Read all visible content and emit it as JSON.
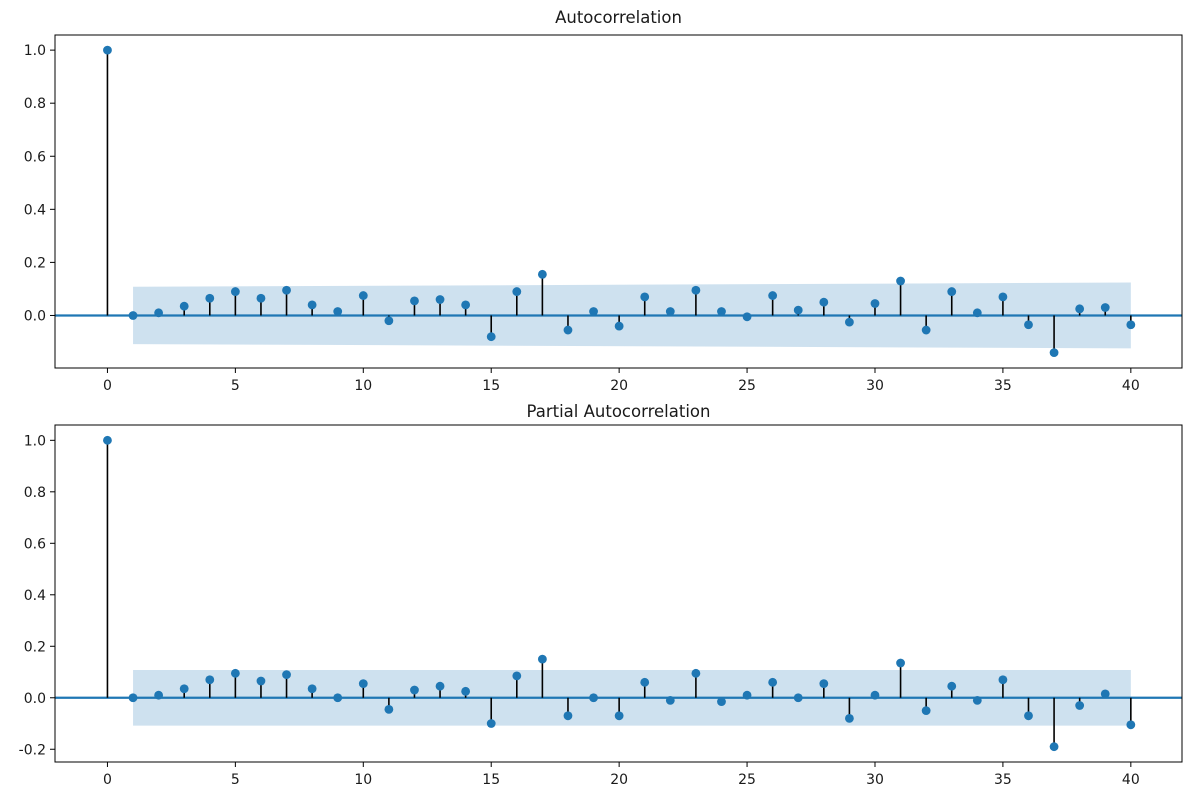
{
  "figure": {
    "background": "#ffffff",
    "kind": "acf-pacf-figure"
  },
  "chart_data": [
    {
      "type": "stem",
      "title": "Autocorrelation",
      "x": [
        0,
        1,
        2,
        3,
        4,
        5,
        6,
        7,
        8,
        9,
        10,
        11,
        12,
        13,
        14,
        15,
        16,
        17,
        18,
        19,
        20,
        21,
        22,
        23,
        24,
        25,
        26,
        27,
        28,
        29,
        30,
        31,
        32,
        33,
        34,
        35,
        36,
        37,
        38,
        39,
        40
      ],
      "values": [
        1.0,
        0.0,
        0.01,
        0.035,
        0.065,
        0.09,
        0.065,
        0.095,
        0.04,
        0.015,
        0.075,
        -0.02,
        0.055,
        0.06,
        0.04,
        -0.08,
        0.09,
        0.155,
        -0.055,
        0.015,
        -0.04,
        0.07,
        0.015,
        0.095,
        0.015,
        -0.005,
        0.075,
        0.02,
        0.05,
        -0.025,
        0.045,
        0.13,
        -0.055,
        0.09,
        0.01,
        0.07,
        -0.035,
        -0.14,
        0.025,
        0.03,
        -0.035
      ],
      "conf_band": {
        "x_start": 1,
        "x_end": 40,
        "upper_start": 0.108,
        "upper_end": 0.124,
        "lower_start": -0.108,
        "lower_end": -0.124
      },
      "xlim": [
        -2.05,
        42.0
      ],
      "ylim": [
        -0.198,
        1.057
      ],
      "xticks": [
        0,
        5,
        10,
        15,
        20,
        25,
        30,
        35,
        40
      ],
      "xtick_labels": [
        "0",
        "5",
        "10",
        "15",
        "20",
        "25",
        "30",
        "35",
        "40"
      ],
      "yticks": [
        0.0,
        0.2,
        0.4,
        0.6,
        0.8,
        1.0
      ],
      "ytick_labels": [
        "0.0",
        "0.2",
        "0.4",
        "0.6",
        "0.8",
        "1.0"
      ],
      "grid": false,
      "legend": null,
      "colors": {
        "marker": "#1f77b4",
        "stem": "#000000",
        "zero_line": "#1f77b4",
        "band": "#1f77b4",
        "band_opacity": 0.22,
        "frame": "#000000"
      }
    },
    {
      "type": "stem",
      "title": "Partial Autocorrelation",
      "x": [
        0,
        1,
        2,
        3,
        4,
        5,
        6,
        7,
        8,
        9,
        10,
        11,
        12,
        13,
        14,
        15,
        16,
        17,
        18,
        19,
        20,
        21,
        22,
        23,
        24,
        25,
        26,
        27,
        28,
        29,
        30,
        31,
        32,
        33,
        34,
        35,
        36,
        37,
        38,
        39,
        40
      ],
      "values": [
        1.0,
        0.0,
        0.01,
        0.035,
        0.07,
        0.095,
        0.065,
        0.09,
        0.035,
        0.0,
        0.055,
        -0.045,
        0.03,
        0.045,
        0.025,
        -0.1,
        0.085,
        0.15,
        -0.07,
        0.0,
        -0.07,
        0.06,
        -0.01,
        0.095,
        -0.015,
        0.01,
        0.06,
        0.0,
        0.055,
        -0.08,
        0.01,
        0.135,
        -0.05,
        0.045,
        -0.01,
        0.07,
        -0.07,
        -0.19,
        -0.03,
        0.015,
        -0.105
      ],
      "conf_band": {
        "x_start": 1,
        "x_end": 40,
        "upper_start": 0.108,
        "upper_end": 0.108,
        "lower_start": -0.108,
        "lower_end": -0.108
      },
      "xlim": [
        -2.05,
        42.0
      ],
      "ylim": [
        -0.2495,
        1.0595
      ],
      "xticks": [
        0,
        5,
        10,
        15,
        20,
        25,
        30,
        35,
        40
      ],
      "xtick_labels": [
        "0",
        "5",
        "10",
        "15",
        "20",
        "25",
        "30",
        "35",
        "40"
      ],
      "yticks": [
        -0.2,
        0.0,
        0.2,
        0.4,
        0.6,
        0.8,
        1.0
      ],
      "ytick_labels": [
        "-0.2",
        "0.0",
        "0.2",
        "0.4",
        "0.6",
        "0.8",
        "1.0"
      ],
      "grid": false,
      "legend": null,
      "colors": {
        "marker": "#1f77b4",
        "stem": "#000000",
        "zero_line": "#1f77b4",
        "band": "#1f77b4",
        "band_opacity": 0.22,
        "frame": "#000000"
      }
    }
  ]
}
